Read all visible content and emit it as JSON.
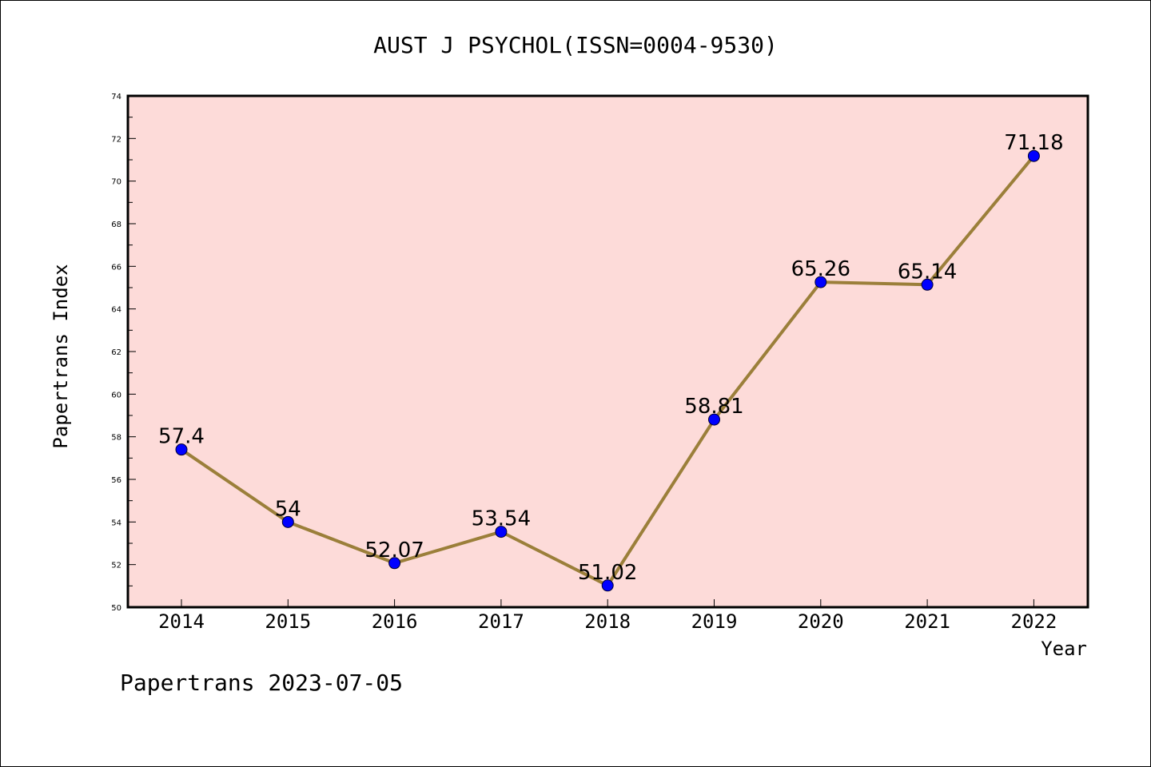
{
  "chart_data": {
    "type": "line",
    "title": "AUST J PSYCHOL(ISSN=0004-9530)",
    "xlabel": "Year",
    "ylabel": "Papertrans Index",
    "categories": [
      "2014",
      "2015",
      "2016",
      "2017",
      "2018",
      "2019",
      "2020",
      "2021",
      "2022"
    ],
    "series": [
      {
        "values": [
          57.4,
          54,
          52.07,
          53.54,
          51.02,
          58.81,
          65.26,
          65.14,
          71.18
        ],
        "labels": [
          "57.4",
          "54",
          "52.07",
          "53.54",
          "51.02",
          "58.81",
          "65.26",
          "65.14",
          "71.18"
        ]
      }
    ],
    "ylim": [
      50,
      74
    ],
    "yticks": [
      "50",
      "52",
      "54",
      "56",
      "58",
      "60",
      "62",
      "64",
      "66",
      "68",
      "70",
      "72",
      "74"
    ],
    "grid": false,
    "footer": "Papertrans 2023-07-05",
    "colors": {
      "plot_background": "#fddbd9",
      "line": "#9b7f3a",
      "marker": "#0000ff"
    }
  }
}
